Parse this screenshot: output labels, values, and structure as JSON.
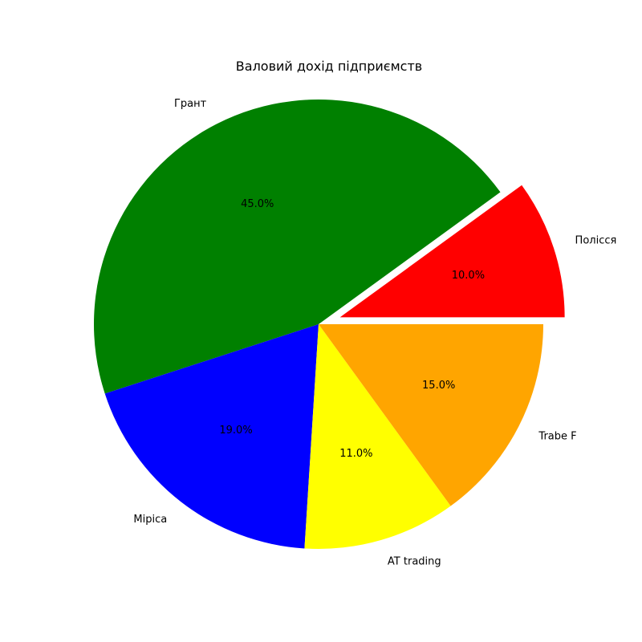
{
  "chart_data": {
    "type": "pie",
    "title": "Валовий дохід підприємств",
    "start_angle_deg": 0,
    "direction": "counterclockwise",
    "slices": [
      {
        "label": "Полісся",
        "value": 10,
        "pct_label": "10.0%",
        "color": "#ff0000",
        "exploded": true
      },
      {
        "label": "Грант",
        "value": 45,
        "pct_label": "45.0%",
        "color": "#008000",
        "exploded": false
      },
      {
        "label": "Mipica",
        "value": 19,
        "pct_label": "19.0%",
        "color": "#0000ff",
        "exploded": false
      },
      {
        "label": "AT trading",
        "value": 11,
        "pct_label": "11.0%",
        "color": "#ffff00",
        "exploded": false
      },
      {
        "label": "Trabe F",
        "value": 15,
        "pct_label": "15.0%",
        "color": "#ffa500",
        "exploded": false
      }
    ]
  }
}
